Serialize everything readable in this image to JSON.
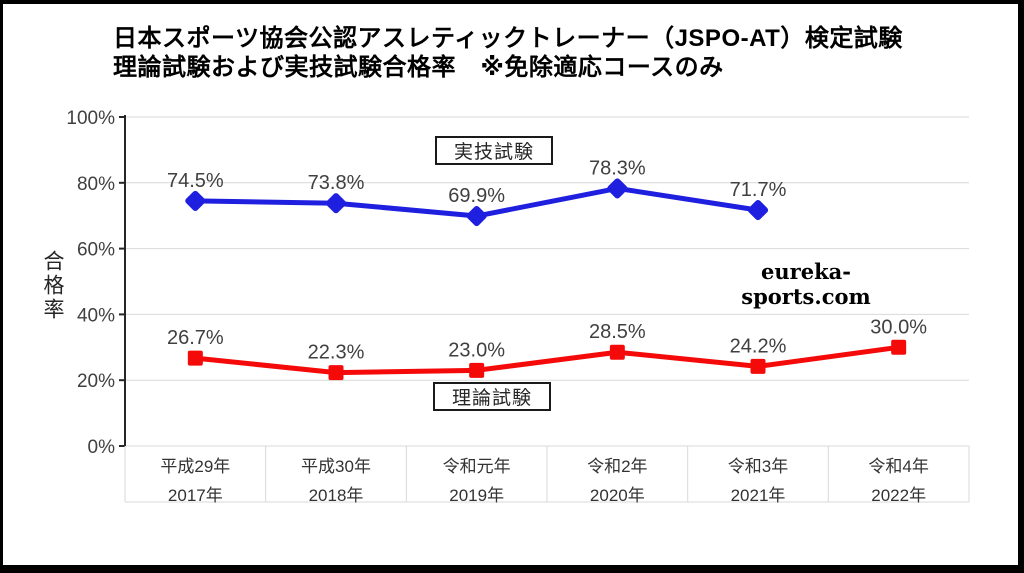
{
  "title": {
    "line1": "日本スポーツ協会公認アスレティックトレーナー（JSPO-AT）検定試験",
    "line2": "理論試験および実技試験合格率　※免除適応コースのみ"
  },
  "watermark": "eureka-sports.com",
  "chart_data": {
    "type": "line",
    "title": "日本スポーツ協会公認アスレティックトレーナー（JSPO-AT）検定試験 理論試験および実技試験合格率 ※免除適応コースのみ",
    "ylabel": "合格率",
    "xlabel": "",
    "ylim": [
      0,
      100
    ],
    "grid": true,
    "legend_position": "floating-boxes",
    "categories": [
      {
        "era": "平成29年",
        "year": "2017年"
      },
      {
        "era": "平成30年",
        "year": "2018年"
      },
      {
        "era": "令和元年",
        "year": "2019年"
      },
      {
        "era": "令和2年",
        "year": "2020年"
      },
      {
        "era": "令和3年",
        "year": "2021年"
      },
      {
        "era": "令和4年",
        "year": "2022年"
      }
    ],
    "yticks": {
      "values": [
        0,
        20,
        40,
        60,
        80,
        100
      ],
      "labels": [
        "0%",
        "20%",
        "40%",
        "60%",
        "80%",
        "100%"
      ]
    },
    "series": [
      {
        "name": "実技試験",
        "slug": "practical-exam",
        "color": "#1F1FE0",
        "marker": "diamond",
        "values": [
          74.5,
          73.8,
          69.9,
          78.3,
          71.7,
          null
        ],
        "labels": [
          "74.5%",
          "73.8%",
          "69.9%",
          "78.3%",
          "71.7%",
          ""
        ]
      },
      {
        "name": "理論試験",
        "slug": "theory-exam",
        "color": "#F50A0A",
        "marker": "square",
        "values": [
          26.7,
          22.3,
          23.0,
          28.5,
          24.2,
          30.0
        ],
        "labels": [
          "26.7%",
          "22.3%",
          "23.0%",
          "28.5%",
          "24.2%",
          "30.0%"
        ]
      }
    ],
    "colors": {
      "grid": "#D9D9D9",
      "axis": "#262626",
      "tick_text": "#404040",
      "data_label_text": "#404040",
      "category_text": "#333333"
    }
  }
}
